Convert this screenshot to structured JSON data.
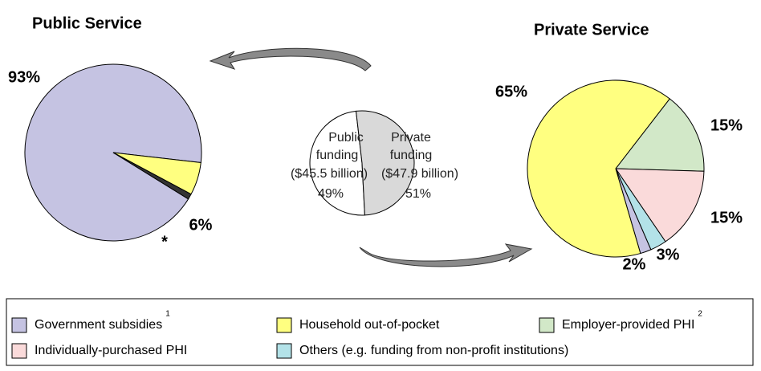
{
  "chart_data": [
    {
      "type": "pie",
      "title": "Public Service",
      "values": [
        93,
        6,
        1
      ],
      "value_labels": [
        "93%",
        "6%",
        "*"
      ],
      "colors": [
        "#c5c3e2",
        "#ffff80",
        "#333333"
      ]
    },
    {
      "type": "pie",
      "labels": [
        [
          "Public",
          "funding",
          "($45.5 billion)"
        ],
        [
          "Private",
          "funding",
          "($47.9 billion)"
        ]
      ],
      "values": [
        49,
        51
      ],
      "value_labels": [
        "49%",
        "51%"
      ],
      "colors": [
        "#ffffff",
        "#d9d9d9"
      ]
    },
    {
      "type": "pie",
      "title": "Private Service",
      "values": [
        15,
        15,
        3,
        2,
        65
      ],
      "value_labels": [
        "15%",
        "15%",
        "3%",
        "2%",
        "65%"
      ],
      "colors": [
        "#d2e8c8",
        "#fadada",
        "#b3e2e8",
        "#c5c3e2",
        "#ffff80"
      ]
    }
  ],
  "legend": {
    "items": [
      {
        "label": "Government subsidies",
        "note": "1",
        "color": "#c5c3e2"
      },
      {
        "label": "Household out-of-pocket",
        "color": "#ffff80"
      },
      {
        "label": "Employer-provided PHI",
        "note": "2",
        "color": "#d2e8c8"
      },
      {
        "label": "Individually-purchased PHI",
        "color": "#fadada"
      },
      {
        "label": "Others (e.g. funding from non-profit institutions)",
        "color": "#b3e2e8"
      }
    ]
  }
}
